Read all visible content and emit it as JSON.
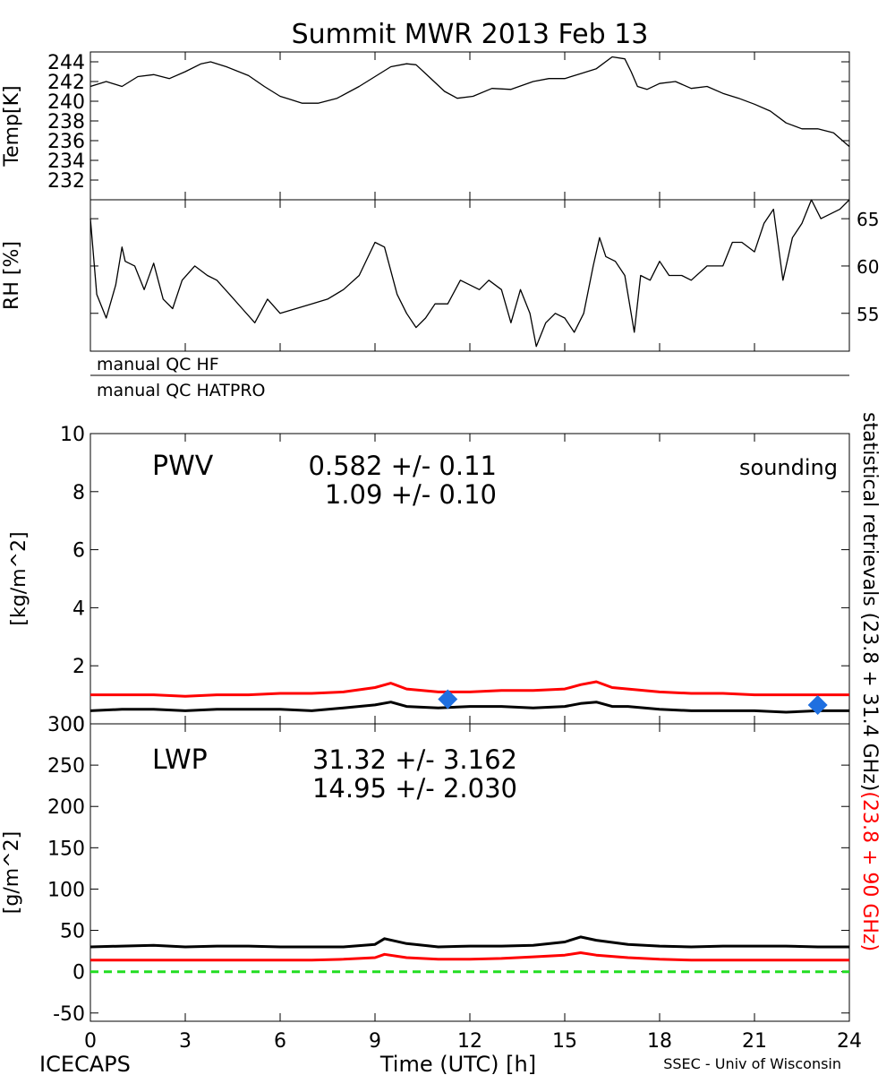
{
  "title": "Summit MWR 2013 Feb 13",
  "footer": {
    "left": "ICECAPS",
    "center": "Time (UTC) [h]",
    "right": "SSEC - Univ of Wisconsin"
  },
  "right_label": {
    "black_part": "statistical retrievals (23.8 + 31.4 GHz)",
    "red_part": "(23.8 + 90 GHz)"
  },
  "qc_flags": [
    "manual QC HF",
    "manual QC HATPRO"
  ],
  "colors": {
    "stat_23_31": "#000000",
    "stat_23_90": "#ff0000",
    "sounding": "#1f6fe0",
    "zero_line": "#22dd22"
  },
  "x_axis": {
    "range": [
      0,
      24
    ],
    "ticks": [
      0,
      3,
      6,
      9,
      12,
      15,
      18,
      21,
      24
    ],
    "tick_labels": [
      "0",
      "3",
      "6",
      "9",
      "12",
      "15",
      "18",
      "21",
      "24"
    ]
  },
  "chart_data": [
    {
      "id": "temp",
      "type": "line",
      "ylabel": "Temp[K]",
      "ylim": [
        230,
        245
      ],
      "ytick_labels": [
        "232",
        "234",
        "236",
        "238",
        "240",
        "242",
        "244"
      ],
      "series": [
        {
          "x": [
            0,
            0.5,
            1,
            1.5,
            2,
            2.5,
            3,
            3.5,
            3.8,
            4.3,
            5,
            5.5,
            6,
            6.3,
            6.7,
            7.2,
            7.8,
            8.5,
            9,
            9.5,
            10,
            10.3,
            10.7,
            11.2,
            11.6,
            12.1,
            12.7,
            13.3,
            14,
            14.5,
            15,
            15.5,
            16,
            16.5,
            16.9,
            17.1,
            17.3,
            17.6,
            18,
            18.5,
            19,
            19.5,
            20,
            20.5,
            21,
            21.5,
            22,
            22.5,
            23,
            23.5,
            24
          ],
          "y": [
            241.5,
            242,
            241.5,
            242.5,
            242.7,
            242.3,
            243,
            243.8,
            244,
            243.5,
            242.6,
            241.5,
            240.5,
            240.2,
            239.8,
            239.8,
            240.3,
            241.5,
            242.5,
            243.5,
            243.8,
            243.7,
            242.5,
            241,
            240.3,
            240.5,
            241.3,
            241.2,
            242,
            242.3,
            242.3,
            242.8,
            243.3,
            244.5,
            244.3,
            243,
            241.5,
            241.2,
            241.8,
            242,
            241.3,
            241.5,
            240.8,
            240.3,
            239.7,
            239,
            237.8,
            237.2,
            237.2,
            236.8,
            235.4
          ]
        }
      ]
    },
    {
      "id": "rh",
      "type": "line",
      "ylabel": "RH [%]",
      "ylim": [
        51,
        67
      ],
      "ytick_labels": [
        "55",
        "60",
        "65"
      ],
      "series": [
        {
          "x": [
            0,
            0.2,
            0.5,
            0.8,
            1,
            1.1,
            1.4,
            1.7,
            2,
            2.3,
            2.6,
            2.9,
            3.3,
            3.7,
            4,
            4.4,
            4.8,
            5.2,
            5.6,
            6,
            6.5,
            7,
            7.5,
            8,
            8.5,
            9,
            9.3,
            9.7,
            10,
            10.3,
            10.6,
            10.9,
            11.3,
            11.7,
            12,
            12.3,
            12.6,
            13,
            13.3,
            13.6,
            13.9,
            14.1,
            14.4,
            14.7,
            15,
            15.3,
            15.6,
            15.9,
            16.1,
            16.3,
            16.6,
            16.9,
            17.2,
            17.4,
            17.7,
            18,
            18.3,
            18.7,
            19,
            19.5,
            20,
            20.3,
            20.6,
            21,
            21.3,
            21.6,
            21.9,
            22.2,
            22.5,
            22.8,
            23.1,
            23.4,
            23.7,
            24
          ],
          "y": [
            65,
            57,
            54.5,
            58,
            62,
            60.5,
            60,
            57.5,
            60.3,
            56.5,
            55.5,
            58.5,
            60,
            59,
            58.5,
            57,
            55.5,
            54,
            56.5,
            55,
            55.5,
            56,
            56.5,
            57.5,
            59,
            62.5,
            62,
            57,
            55,
            53.5,
            54.5,
            56,
            56,
            58.5,
            58,
            57.5,
            58.5,
            57.5,
            54,
            57.5,
            55,
            51.5,
            54,
            55,
            54.5,
            53,
            55,
            60,
            63,
            61,
            60.5,
            59,
            53,
            59,
            58.5,
            60.5,
            59,
            59,
            58.5,
            60,
            60,
            62.5,
            62.5,
            61.5,
            64.5,
            66,
            58.5,
            63,
            64.5,
            67,
            65,
            65.5,
            66,
            67
          ]
        }
      ]
    },
    {
      "id": "pwv",
      "type": "line",
      "title": "PWV",
      "ylabel": "[kg/m^2]",
      "ylim": [
        0,
        10
      ],
      "ytick_labels": [
        "0",
        "2",
        "4",
        "6",
        "8",
        "10"
      ],
      "annotations": [
        {
          "text": "0.582 +/-   0.11",
          "color": "#000000"
        },
        {
          "text": "1.09 +/-   0.10",
          "color": "#ff0000"
        }
      ],
      "legend": {
        "text": "sounding",
        "placement": "top-right"
      },
      "series": [
        {
          "color": "#000000",
          "x": [
            0,
            1,
            2,
            3,
            4,
            5,
            6,
            7,
            8,
            9,
            9.5,
            10,
            11,
            12,
            13,
            14,
            15,
            15.5,
            16,
            16.5,
            17,
            18,
            19,
            20,
            21,
            22,
            23,
            24
          ],
          "y": [
            0.45,
            0.5,
            0.5,
            0.45,
            0.5,
            0.5,
            0.5,
            0.45,
            0.55,
            0.65,
            0.75,
            0.6,
            0.55,
            0.6,
            0.6,
            0.55,
            0.6,
            0.7,
            0.75,
            0.6,
            0.6,
            0.5,
            0.45,
            0.45,
            0.45,
            0.4,
            0.45,
            0.45
          ]
        },
        {
          "color": "#ff0000",
          "x": [
            0,
            1,
            2,
            3,
            4,
            5,
            6,
            7,
            8,
            9,
            9.5,
            10,
            11,
            12,
            13,
            14,
            15,
            15.5,
            16,
            16.5,
            17,
            18,
            19,
            20,
            21,
            22,
            23,
            24
          ],
          "y": [
            1.0,
            1.0,
            1.0,
            0.95,
            1.0,
            1.0,
            1.05,
            1.05,
            1.1,
            1.25,
            1.4,
            1.2,
            1.1,
            1.1,
            1.15,
            1.15,
            1.2,
            1.35,
            1.45,
            1.25,
            1.2,
            1.1,
            1.05,
            1.05,
            1.0,
            1.0,
            1.0,
            1.0
          ]
        },
        {
          "name": "sounding",
          "type": "scatter",
          "color": "#1f6fe0",
          "x": [
            11.3,
            23.0
          ],
          "y": [
            0.85,
            0.65
          ]
        }
      ]
    },
    {
      "id": "lwp",
      "type": "line",
      "title": "LWP",
      "ylabel": "[g/m^2]",
      "ylim": [
        -60,
        300
      ],
      "ytick_labels": [
        "-50",
        "0",
        "50",
        "100",
        "150",
        "200",
        "250",
        "300"
      ],
      "annotations": [
        {
          "text": "31.32 +/-   3.162",
          "color": "#000000"
        },
        {
          "text": "14.95 +/-   2.030",
          "color": "#ff0000"
        }
      ],
      "series": [
        {
          "color": "#000000",
          "x": [
            0,
            1,
            2,
            3,
            4,
            5,
            6,
            7,
            8,
            9,
            9.3,
            10,
            11,
            12,
            13,
            14,
            15,
            15.5,
            16,
            17,
            18,
            19,
            20,
            21,
            22,
            23,
            24
          ],
          "y": [
            30,
            31,
            32,
            30,
            31,
            31,
            30,
            30,
            30,
            33,
            40,
            34,
            30,
            31,
            31,
            32,
            36,
            42,
            38,
            33,
            31,
            30,
            31,
            31,
            31,
            30,
            30
          ]
        },
        {
          "color": "#ff0000",
          "x": [
            0,
            1,
            2,
            3,
            4,
            5,
            6,
            7,
            8,
            9,
            9.3,
            10,
            11,
            12,
            13,
            14,
            15,
            15.5,
            16,
            17,
            18,
            19,
            20,
            21,
            22,
            23,
            24
          ],
          "y": [
            14,
            14,
            14,
            14,
            14,
            14,
            14,
            14,
            15,
            17,
            21,
            17,
            15,
            15,
            16,
            18,
            20,
            23,
            20,
            17,
            15,
            14,
            14,
            14,
            14,
            14,
            14
          ]
        },
        {
          "name": "zero",
          "color": "#22dd22",
          "dashed": true,
          "x": [
            0,
            24
          ],
          "y": [
            0,
            0
          ]
        }
      ]
    }
  ]
}
